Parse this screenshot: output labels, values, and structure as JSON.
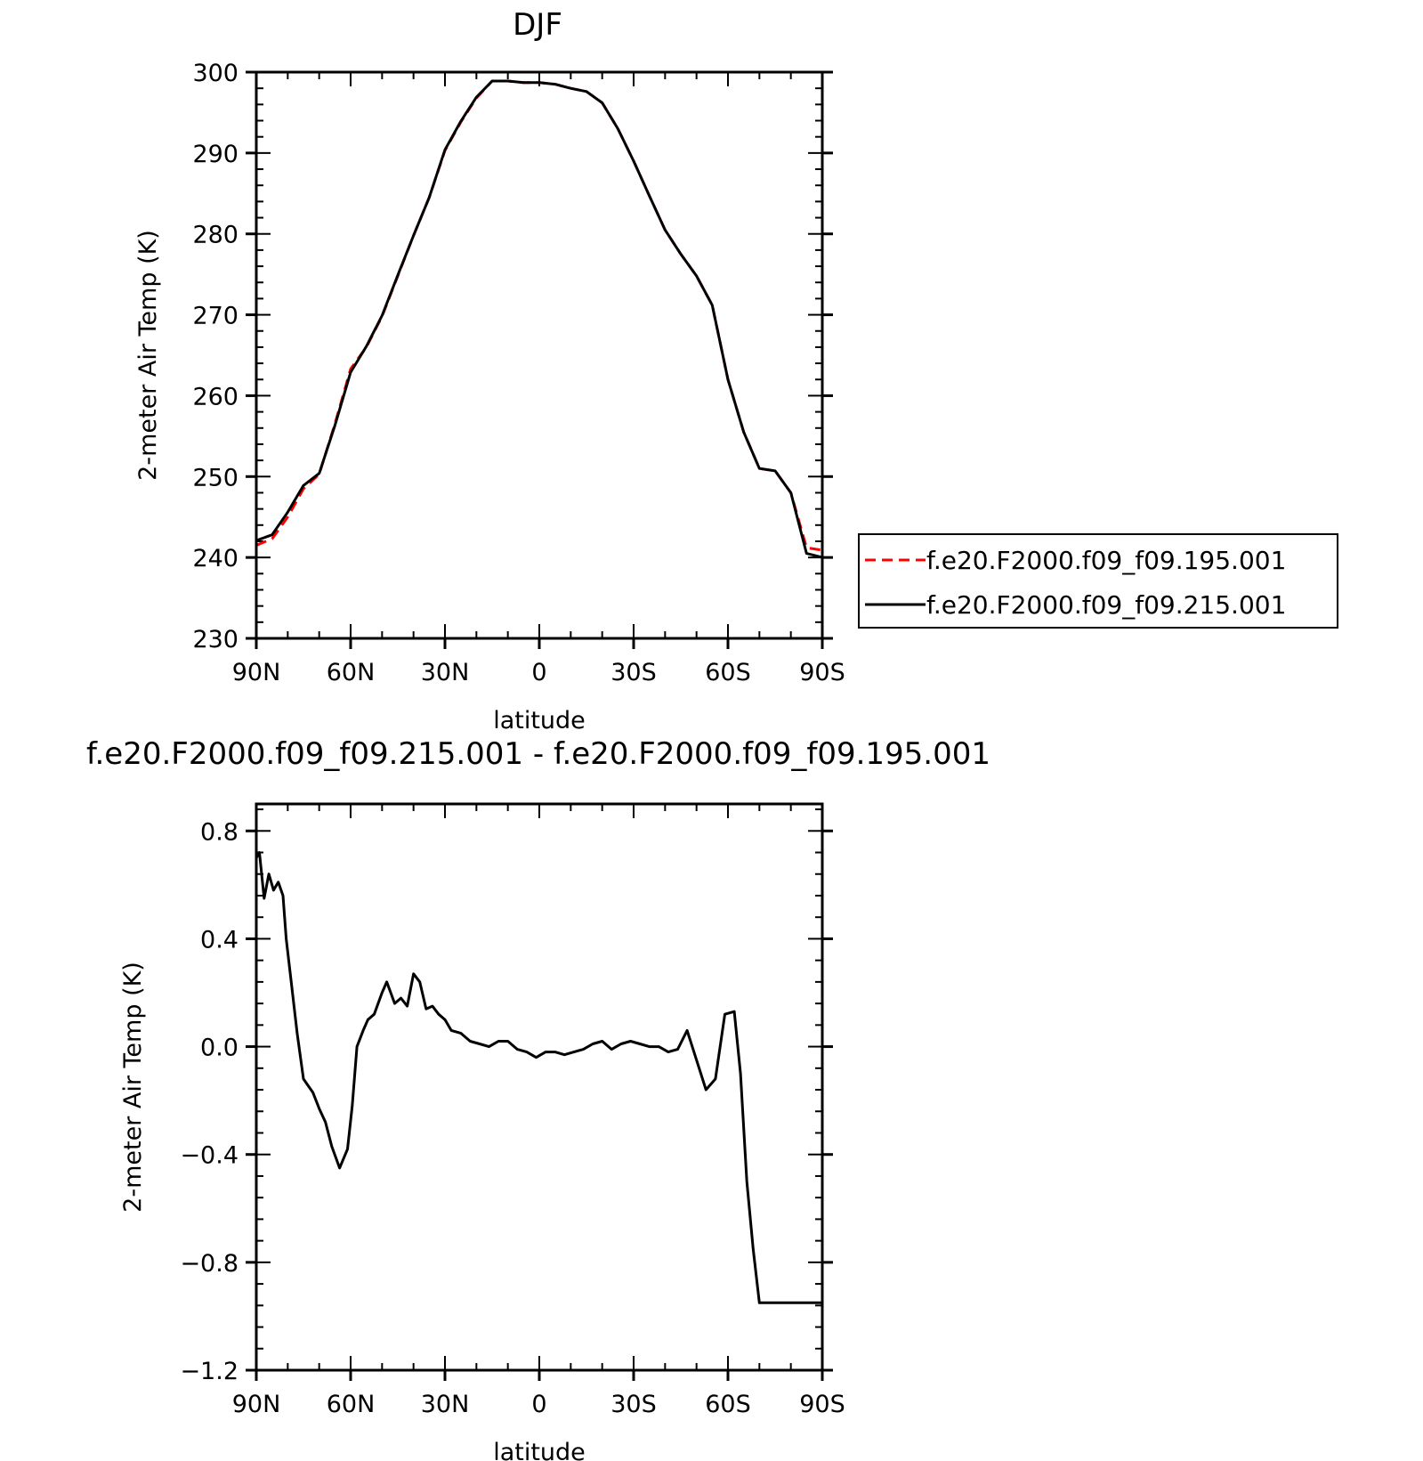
{
  "chart_data": [
    {
      "type": "line",
      "title": "DJF",
      "xlabel": "latitude",
      "ylabel": "2-meter Air Temp (K)",
      "x_tick_labels": [
        "90N",
        "60N",
        "30N",
        "0",
        "30S",
        "60S",
        "90S"
      ],
      "x_ticks": [
        90,
        60,
        30,
        0,
        -30,
        -60,
        -90
      ],
      "xlim": [
        90,
        -90
      ],
      "ylim": [
        230,
        300
      ],
      "y_ticks": [
        230,
        240,
        250,
        260,
        270,
        280,
        290,
        300
      ],
      "y_tick_labels": [
        "230",
        "240",
        "250",
        "260",
        "270",
        "280",
        "290",
        "300"
      ],
      "grid": false,
      "legend": "right",
      "x": [
        90,
        85,
        80,
        75,
        70,
        65,
        60,
        55,
        50,
        45,
        40,
        35,
        30,
        25,
        20,
        15,
        10,
        5,
        0,
        -5,
        -10,
        -15,
        -20,
        -25,
        -30,
        -35,
        -40,
        -45,
        -50,
        -55,
        -60,
        -65,
        -70,
        -75,
        -80,
        -85,
        -90
      ],
      "series": [
        {
          "name": "f.e20.F2000.f09_f09.195.001",
          "color": "#ff0000",
          "dash": "dashed",
          "values": [
            241.5,
            242.3,
            245.0,
            248.5,
            250.3,
            256.5,
            263.3,
            266.0,
            269.8,
            274.8,
            279.8,
            284.5,
            290.3,
            293.8,
            296.8,
            298.9,
            298.9,
            298.7,
            298.7,
            298.5,
            298.0,
            297.6,
            296.2,
            293.0,
            289.0,
            284.7,
            280.5,
            277.5,
            274.8,
            271.2,
            262.0,
            255.5,
            251.0,
            250.7,
            248.0,
            241.2,
            240.9
          ]
        },
        {
          "name": "f.e20.F2000.f09_f09.215.001",
          "color": "#000000",
          "dash": "solid",
          "values": [
            242.1,
            242.8,
            245.6,
            248.9,
            250.4,
            256.3,
            262.9,
            266.1,
            269.9,
            274.9,
            279.8,
            284.5,
            290.4,
            293.9,
            296.9,
            298.9,
            298.9,
            298.7,
            298.7,
            298.5,
            298.0,
            297.6,
            296.2,
            293.0,
            289.0,
            284.7,
            280.5,
            277.5,
            274.8,
            271.2,
            262.0,
            255.5,
            251.0,
            250.7,
            248.0,
            240.5,
            240.0
          ]
        }
      ]
    },
    {
      "type": "line",
      "title": "f.e20.F2000.f09_f09.215.001 - f.e20.F2000.f09_f09.195.001",
      "xlabel": "latitude",
      "ylabel": "2-meter Air Temp (K)",
      "x_tick_labels": [
        "90N",
        "60N",
        "30N",
        "0",
        "30S",
        "60S",
        "90S"
      ],
      "x_ticks": [
        90,
        60,
        30,
        0,
        -30,
        -60,
        -90
      ],
      "xlim": [
        90,
        -90
      ],
      "ylim": [
        -1.2,
        0.9
      ],
      "y_ticks": [
        -1.2,
        -0.8,
        -0.4,
        0.0,
        0.4,
        0.8
      ],
      "y_tick_labels": [
        "−1.2",
        "−0.8",
        "−0.4",
        "0.0",
        "0.4",
        "0.8"
      ],
      "grid": false,
      "x": [
        90,
        89,
        87.5,
        86,
        84.5,
        83,
        81.5,
        80.5,
        79,
        77,
        75,
        72,
        70,
        68,
        66,
        63.5,
        61,
        59.5,
        58,
        56,
        54.5,
        52.5,
        50,
        48.5,
        46,
        44,
        42,
        40,
        38,
        36,
        34,
        32,
        30,
        28,
        25,
        22,
        19,
        16,
        13,
        10,
        7,
        4,
        1,
        -2,
        -5,
        -8,
        -11,
        -14,
        -17,
        -20,
        -23,
        -26,
        -29,
        -32,
        -35,
        -38,
        -41,
        -44,
        -47,
        -50,
        -53,
        -56,
        -59,
        -62,
        -64,
        -66,
        -68,
        -70,
        -72,
        -74,
        -76,
        -78,
        -80,
        -82,
        -84,
        -86,
        -88,
        -90
      ],
      "series": [
        {
          "name": "",
          "color": "#000000",
          "dash": "solid",
          "values": [
            0.7,
            0.72,
            0.55,
            0.64,
            0.58,
            0.61,
            0.56,
            0.4,
            0.25,
            0.05,
            -0.12,
            -0.17,
            -0.23,
            -0.28,
            -0.37,
            -0.45,
            -0.38,
            -0.22,
            0.0,
            0.06,
            0.1,
            0.12,
            0.2,
            0.24,
            0.16,
            0.18,
            0.15,
            0.27,
            0.24,
            0.14,
            0.15,
            0.12,
            0.1,
            0.06,
            0.05,
            0.02,
            0.01,
            0.0,
            0.02,
            0.02,
            -0.01,
            -0.02,
            -0.04,
            -0.02,
            -0.02,
            -0.03,
            -0.02,
            -0.01,
            0.01,
            0.02,
            -0.01,
            0.01,
            0.02,
            0.01,
            0.0,
            0.0,
            -0.02,
            -0.01,
            0.06,
            -0.05,
            -0.16,
            -0.12,
            0.12,
            0.13,
            -0.1,
            -0.5,
            -0.75,
            -0.95,
            -0.95,
            -0.95,
            -0.95,
            -0.95,
            -0.95,
            -0.95,
            -0.95,
            -0.95,
            -0.95,
            -0.95
          ]
        }
      ]
    }
  ]
}
